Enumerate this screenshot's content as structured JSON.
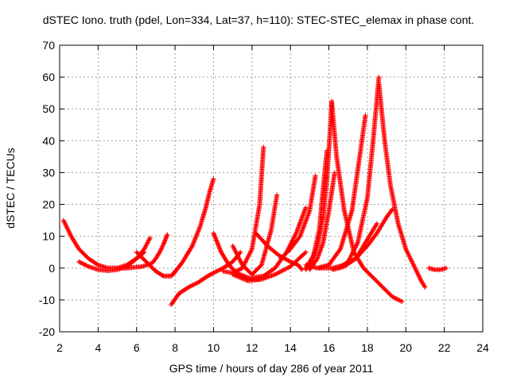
{
  "chart_data": {
    "type": "scatter",
    "title": "dSTEC Iono. truth (pdel, Lon=334, Lat=37, h=110): STEC-STEC_elemax in phase cont.",
    "xlabel": "GPS time / hours of day 286 of year 2011",
    "ylabel": "dSTEC  / TECUs",
    "xlim": [
      2,
      24
    ],
    "ylim": [
      -20,
      70
    ],
    "x_ticks": [
      2,
      4,
      6,
      8,
      10,
      12,
      14,
      16,
      18,
      20,
      22,
      24
    ],
    "y_ticks": [
      -20,
      -10,
      0,
      10,
      20,
      30,
      40,
      50,
      60,
      70
    ],
    "x_tick_labels": [
      "2",
      "4",
      "6",
      "8",
      "10",
      "12",
      "14",
      "16",
      "18",
      "20",
      "22",
      "24"
    ],
    "y_tick_labels": [
      "-20",
      "-10",
      "0",
      "10",
      "20",
      "30",
      "40",
      "50",
      "60",
      "70"
    ],
    "grid": true,
    "marker": "plus",
    "color": "#ff0000",
    "series": [
      {
        "x": [
          2.2,
          2.6,
          3.0,
          3.5,
          4.0,
          4.5,
          5.0,
          5.5,
          6.0,
          6.4
        ],
        "y": [
          15,
          10,
          6,
          3,
          1,
          0,
          0,
          1,
          3,
          5
        ]
      },
      {
        "x": [
          3.0,
          3.5,
          4.0,
          4.5,
          5.0,
          5.5,
          6.0,
          6.4,
          6.7
        ],
        "y": [
          2,
          0.5,
          -0.5,
          -0.8,
          -0.5,
          0.5,
          3,
          6,
          9.5
        ]
      },
      {
        "x": [
          4.5,
          5.5,
          6.3,
          6.8,
          7.0,
          7.2,
          7.4,
          7.6
        ],
        "y": [
          0,
          0,
          0.5,
          1.5,
          3,
          5,
          7.5,
          10.5
        ]
      },
      {
        "x": [
          6.0,
          6.5,
          7.0,
          7.4,
          7.8,
          8.0
        ],
        "y": [
          5,
          2,
          -1,
          -2.5,
          -2.5,
          -1
        ]
      },
      {
        "x": [
          7.8,
          8.2,
          8.7,
          9.2,
          9.7,
          10.0,
          10.5,
          11.0,
          11.4
        ],
        "y": [
          -11.5,
          -8,
          -6,
          -4.5,
          -2.5,
          -1.5,
          0,
          2,
          5
        ]
      },
      {
        "x": [
          7.9,
          8.4,
          8.9,
          9.3,
          9.6,
          9.8,
          10.0
        ],
        "y": [
          -2,
          2,
          7,
          13,
          19,
          24,
          28
        ]
      },
      {
        "x": [
          10.0,
          10.4,
          10.8,
          11.2,
          11.6,
          12.0,
          12.4
        ],
        "y": [
          11,
          5,
          1,
          -1.5,
          -2.5,
          -3.5,
          -3.5
        ]
      },
      {
        "x": [
          10.5,
          11.0,
          11.5,
          12.0,
          12.4,
          12.6
        ],
        "y": [
          -1,
          -1.5,
          0,
          6,
          20,
          38
        ]
      },
      {
        "x": [
          11.0,
          11.5,
          12.0,
          12.5,
          13.0,
          13.3
        ],
        "y": [
          7,
          1,
          -2,
          1,
          12,
          23
        ]
      },
      {
        "x": [
          11.0,
          11.8,
          12.5,
          13.2,
          14.0,
          14.8
        ],
        "y": [
          -2,
          -4,
          -3.5,
          -2,
          0.5,
          5
        ]
      },
      {
        "x": [
          12.2,
          12.8,
          13.4,
          14.0,
          14.4,
          14.6
        ],
        "y": [
          11,
          7,
          4,
          2,
          1,
          -0.5
        ]
      },
      {
        "x": [
          12.0,
          12.6,
          13.2,
          13.8,
          14.3,
          14.8
        ],
        "y": [
          -3,
          -2.5,
          0,
          5,
          11,
          19
        ]
      },
      {
        "x": [
          13.5,
          14.0,
          14.5,
          15.0,
          15.3
        ],
        "y": [
          3,
          6,
          10,
          18,
          29
        ]
      },
      {
        "x": [
          14.8,
          15.2,
          15.5,
          15.7,
          15.9
        ],
        "y": [
          0,
          4,
          12,
          25,
          37
        ]
      },
      {
        "x": [
          15.0,
          15.4,
          15.7,
          16.0,
          16.3
        ],
        "y": [
          -0.5,
          3,
          8,
          18,
          30
        ]
      },
      {
        "x": [
          14.8,
          15.1,
          15.4,
          15.7,
          15.9,
          16.05,
          16.15
        ],
        "y": [
          -0.5,
          2,
          7,
          16,
          28,
          42,
          52.5
        ]
      },
      {
        "x": [
          16.15,
          16.4,
          16.8,
          17.3,
          17.8,
          18.3,
          18.8,
          19.3,
          19.8
        ],
        "y": [
          52,
          35,
          18,
          5,
          0,
          -3,
          -6,
          -9,
          -10.5
        ]
      },
      {
        "x": [
          14.8,
          15.4,
          16.0,
          16.6,
          17.2,
          17.6,
          17.9
        ],
        "y": [
          1,
          0,
          1,
          6,
          18,
          35,
          48
        ]
      },
      {
        "x": [
          15.5,
          16.2,
          16.8,
          17.4,
          18.0,
          18.5,
          19.0,
          19.3
        ],
        "y": [
          0,
          0,
          1,
          3,
          7,
          11,
          16,
          18.5
        ]
      },
      {
        "x": [
          16.2,
          16.8,
          17.4,
          18.0,
          18.5
        ],
        "y": [
          -0.5,
          0.5,
          3,
          9,
          14
        ]
      },
      {
        "x": [
          16.5,
          17.0,
          17.5,
          18.0,
          18.3,
          18.6
        ],
        "y": [
          0,
          2,
          8,
          22,
          40,
          60
        ]
      },
      {
        "x": [
          18.6,
          18.9,
          19.2,
          19.6,
          20.0,
          20.4,
          20.8,
          21.0
        ],
        "y": [
          58,
          40,
          26,
          14,
          6,
          1,
          -4,
          -6
        ]
      },
      {
        "x": [
          21.2,
          21.5,
          21.8,
          22.1
        ],
        "y": [
          0,
          -0.5,
          -0.5,
          0
        ]
      }
    ]
  }
}
